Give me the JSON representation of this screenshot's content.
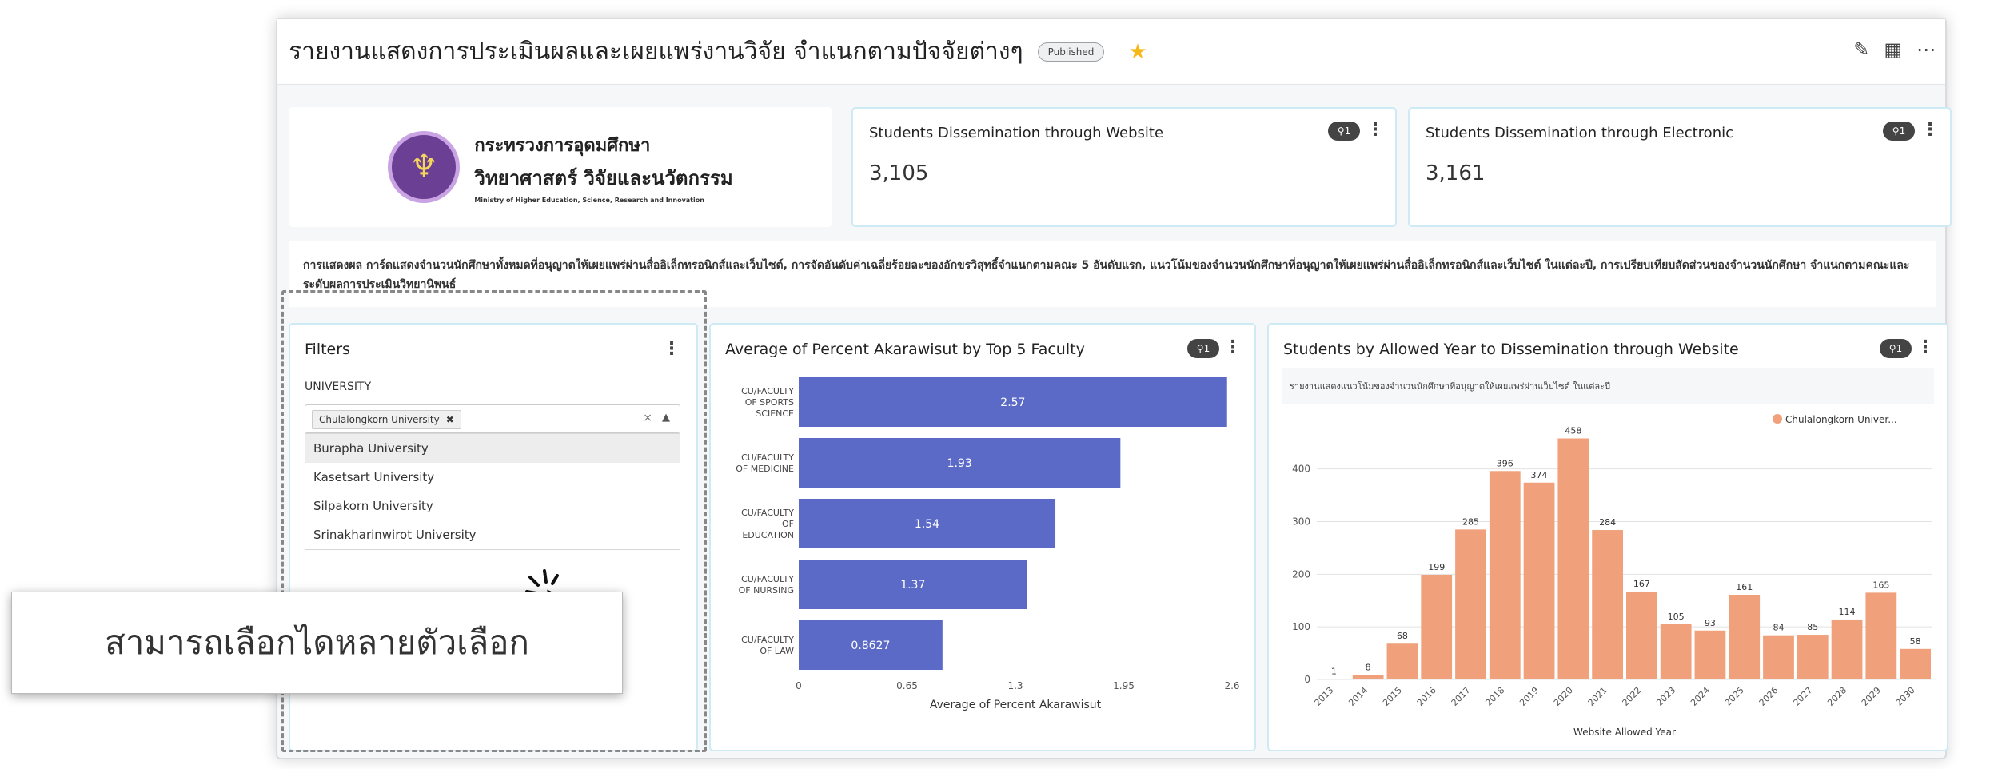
{
  "header": {
    "title": "รายงานแสดงการประเมินผลและเผยแพร่งานวิจัย จำแนกตามปัจจัยต่างๆ",
    "badge": "Published",
    "actions": [
      "edit-icon",
      "calendar-icon",
      "more-icon"
    ]
  },
  "logo": {
    "line1": "กระทรวงการอุดมศึกษา",
    "line2": "วิทยาศาสตร์ วิจัยและนวัตกรรม",
    "english": "Ministry of Higher Education, Science, Research and Innovation"
  },
  "kpis": [
    {
      "title": "Students Dissemination through Website",
      "value": "3,105",
      "filter_badge": "1"
    },
    {
      "title": "Students Dissemination through Electronic",
      "value": "3,161",
      "filter_badge": "1"
    }
  ],
  "description": "การแสดงผล การ์ดแสดงจำนวนนักศึกษาทั้งหมดที่อนุญาตให้เผยแพร่ผ่านสื่ออิเล็กทรอนิกส์และเว็บไซต์, การจัดอันดับค่าเฉลี่ยร้อยละของอักขรวิสุทธิ์จำแนกตามคณะ 5 อันดับแรก, แนวโน้มของจำนวนนักศึกษาที่อนุญาตให้เผยแพร่ผ่านสื่ออิเล็กทรอนิกส์และเว็บไซต์ ในแต่ละปี, การเปรียบเทียบสัดส่วนของจำนวนนักศึกษา จำแนกตามคณะและระดับผลการประเมินวิทยานิพนธ์",
  "filters": {
    "title": "Filters",
    "label": "UNIVERSITY",
    "selected": "Chulalongkorn University",
    "options": [
      "Burapha University",
      "Kasetsart University",
      "Silpakorn University",
      "Srinakharinwirot University"
    ]
  },
  "caption": "สามารถเลือกไดหลายตัวเลือก",
  "chart_data": [
    {
      "type": "bar",
      "orientation": "horizontal",
      "title": "Average of Percent Akarawisut by Top 5 Faculty",
      "filter_badge": "1",
      "categories": [
        [
          "CU/FACULTY",
          "OF SPORTS",
          "SCIENCE"
        ],
        [
          "CU/FACULTY",
          "OF MEDICINE"
        ],
        [
          "CU/FACULTY",
          "OF",
          "EDUCATION"
        ],
        [
          "CU/FACULTY",
          "OF NURSING"
        ],
        [
          "CU/FACULTY",
          "OF LAW"
        ]
      ],
      "values": [
        2.57,
        1.93,
        1.54,
        1.37,
        0.8627
      ],
      "value_labels": [
        "2.57",
        "1.93",
        "1.54",
        "1.37",
        "0.8627"
      ],
      "xlabel": "Average of Percent Akarawisut",
      "xticks": [
        "0",
        "0.65",
        "1.3",
        "1.95",
        "2.6"
      ],
      "xlim": [
        0,
        2.6
      ],
      "color": "#5b6ac6"
    },
    {
      "type": "bar",
      "title": "Students by Allowed Year to Dissemination through Website",
      "subtitle": "รายงานแสดงแนวโน้มของจำนวนนักศึกษาที่อนุญาตให้เผยแพร่ผ่านเว็บไซต์ ในแต่ละปี",
      "filter_badge": "1",
      "legend": "Chulalongkorn Univer...",
      "legend_position": "top-right",
      "categories": [
        "2013",
        "2014",
        "2015",
        "2016",
        "2017",
        "2018",
        "2019",
        "2020",
        "2021",
        "2022",
        "2023",
        "2024",
        "2025",
        "2026",
        "2027",
        "2028",
        "2029",
        "2030"
      ],
      "values": [
        1,
        8,
        68,
        199,
        285,
        396,
        374,
        458,
        284,
        167,
        105,
        93,
        161,
        84,
        85,
        114,
        165,
        58
      ],
      "xlabel": "Website Allowed Year",
      "yticks": [
        "0",
        "100",
        "200",
        "300",
        "400"
      ],
      "ylim": [
        0,
        480
      ],
      "color": "#f0a07a"
    }
  ]
}
